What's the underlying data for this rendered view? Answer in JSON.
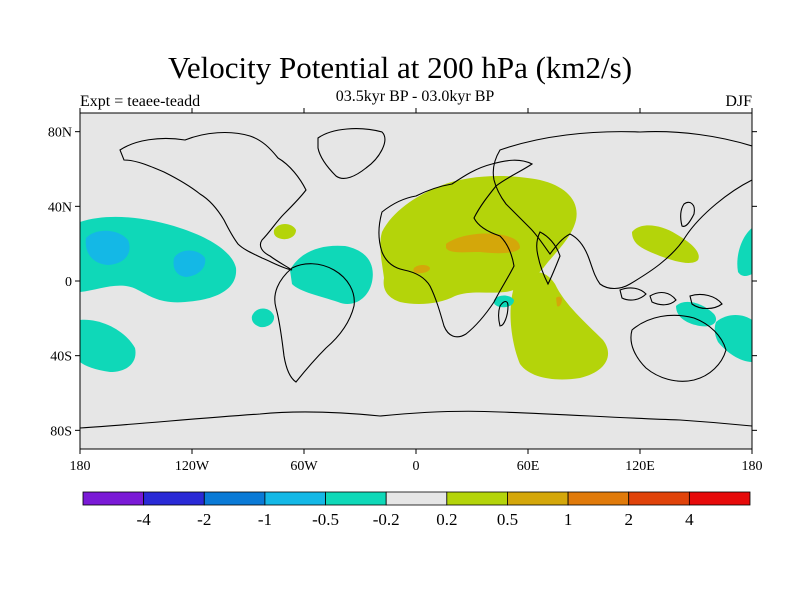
{
  "header": {
    "title": "Velocity Potential at 200 hPa (km2/s)",
    "subtitle": "03.5kyr BP - 03.0kyr BP",
    "expt": "Expt = teaee-teadd",
    "season": "DJF"
  },
  "map": {
    "projection": "cylindrical-equidistant",
    "lon_range": [
      -180,
      180
    ],
    "lat_range": [
      -90,
      90
    ],
    "background_color": "#e6e6e6",
    "lat_tick_labels": [
      "80N",
      "40N",
      "0",
      "40S",
      "80S"
    ],
    "lon_tick_labels": [
      "180",
      "120W",
      "60W",
      "0",
      "60E",
      "120E",
      "180"
    ]
  },
  "colorbar": {
    "colors": [
      "#7a1ad6",
      "#2a2ad6",
      "#0a7ad6",
      "#14b8e6",
      "#0fd8b8",
      "#e6e6e6",
      "#b4d40a",
      "#d4a70a",
      "#e07a0a",
      "#e0430a",
      "#e60a0a"
    ],
    "labels": [
      "-4",
      "-2",
      "-1",
      "-0.5",
      "-0.2",
      "0.2",
      "0.5",
      "1",
      "2",
      "4"
    ]
  },
  "anomaly_regions": [
    {
      "name": "central-pacific",
      "level": "-0.5..-0.2",
      "color": "#0fd8b8"
    },
    {
      "name": "central-pacific-core",
      "level": "-1..-0.5",
      "color": "#14b8e6"
    },
    {
      "name": "south-pacific",
      "level": "-0.5..-0.2",
      "color": "#0fd8b8"
    },
    {
      "name": "tropical-atlantic",
      "level": "-0.5..-0.2",
      "color": "#0fd8b8"
    },
    {
      "name": "africa-middle-east",
      "level": "0.2..0.5",
      "color": "#b4d40a"
    },
    {
      "name": "arabia-core",
      "level": "0.5..1",
      "color": "#d4a70a"
    },
    {
      "name": "indian-ocean",
      "level": "0.2..0.5",
      "color": "#b4d40a"
    },
    {
      "name": "east-asia",
      "level": "0.2..0.5",
      "color": "#b4d40a"
    },
    {
      "name": "maritime-continent",
      "level": "-0.5..-0.2",
      "color": "#0fd8b8"
    }
  ]
}
